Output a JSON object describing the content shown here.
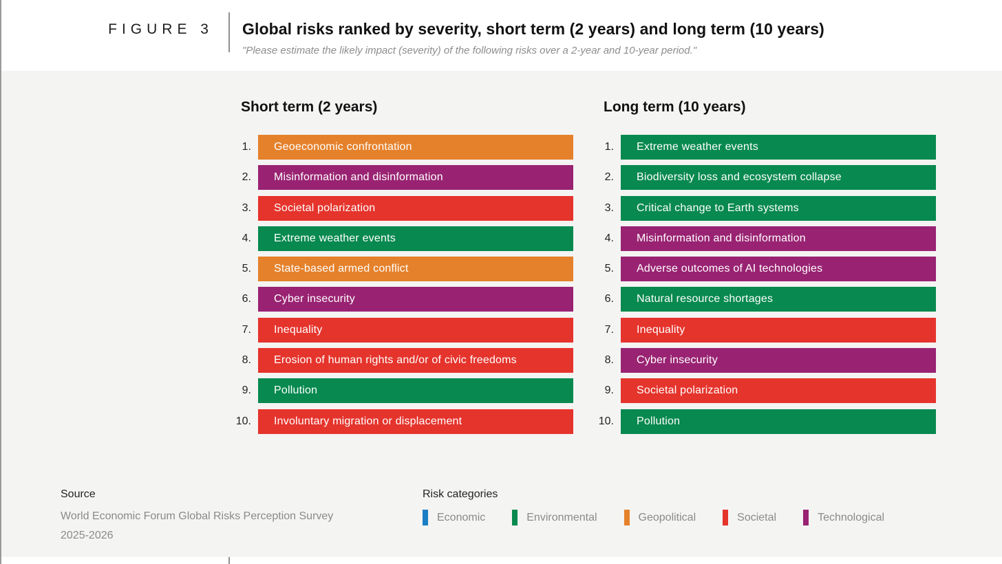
{
  "header": {
    "figure_label": "FIGURE 3",
    "title": "Global risks ranked by severity, short term (2 years) and long term (10 years)",
    "subtitle": "\"Please estimate the likely impact (severity) of the following risks over a 2-year and 10-year period.\""
  },
  "category_colors": {
    "Economic": "#1b7ec4",
    "Environmental": "#08894f",
    "Geopolitical": "#e5812b",
    "Societal": "#e5342c",
    "Technological": "#992372"
  },
  "chart_data": {
    "type": "table",
    "title": "Global risks ranked by severity, short term (2 years) and long term (10 years)",
    "legend_position": "bottom",
    "rankings": [
      {
        "heading": "Short term (2 years)",
        "items": [
          {
            "rank_label": "1.",
            "label": "Geoeconomic confrontation",
            "category": "Geopolitical"
          },
          {
            "rank_label": "2.",
            "label": "Misinformation and disinformation",
            "category": "Technological"
          },
          {
            "rank_label": "3.",
            "label": "Societal polarization",
            "category": "Societal"
          },
          {
            "rank_label": "4.",
            "label": "Extreme weather events",
            "category": "Environmental"
          },
          {
            "rank_label": "5.",
            "label": "State-based armed conflict",
            "category": "Geopolitical"
          },
          {
            "rank_label": "6.",
            "label": "Cyber insecurity",
            "category": "Technological"
          },
          {
            "rank_label": "7.",
            "label": "Inequality",
            "category": "Societal"
          },
          {
            "rank_label": "8.",
            "label": "Erosion of human rights and/or of civic freedoms",
            "category": "Societal"
          },
          {
            "rank_label": "9.",
            "label": "Pollution",
            "category": "Environmental"
          },
          {
            "rank_label": "10.",
            "label": "Involuntary migration or displacement",
            "category": "Societal"
          }
        ]
      },
      {
        "heading": "Long term (10 years)",
        "items": [
          {
            "rank_label": "1.",
            "label": "Extreme weather events",
            "category": "Environmental"
          },
          {
            "rank_label": "2.",
            "label": "Biodiversity loss and ecosystem collapse",
            "category": "Environmental"
          },
          {
            "rank_label": "3.",
            "label": "Critical change to Earth systems",
            "category": "Environmental"
          },
          {
            "rank_label": "4.",
            "label": "Misinformation and disinformation",
            "category": "Technological"
          },
          {
            "rank_label": "5.",
            "label": "Adverse outcomes of AI technologies",
            "category": "Technological"
          },
          {
            "rank_label": "6.",
            "label": "Natural resource shortages",
            "category": "Environmental"
          },
          {
            "rank_label": "7.",
            "label": "Inequality",
            "category": "Societal"
          },
          {
            "rank_label": "8.",
            "label": "Cyber insecurity",
            "category": "Technological"
          },
          {
            "rank_label": "9.",
            "label": "Societal polarization",
            "category": "Societal"
          },
          {
            "rank_label": "10.",
            "label": "Pollution",
            "category": "Environmental"
          }
        ]
      }
    ]
  },
  "source": {
    "heading": "Source",
    "line1": "World Economic Forum Global Risks Perception Survey",
    "line2": "2025-2026"
  },
  "legend": {
    "heading": "Risk categories",
    "items": [
      {
        "label": "Economic",
        "category": "Economic"
      },
      {
        "label": "Environmental",
        "category": "Environmental"
      },
      {
        "label": "Geopolitical",
        "category": "Geopolitical"
      },
      {
        "label": "Societal",
        "category": "Societal"
      },
      {
        "label": "Technological",
        "category": "Technological"
      }
    ]
  }
}
